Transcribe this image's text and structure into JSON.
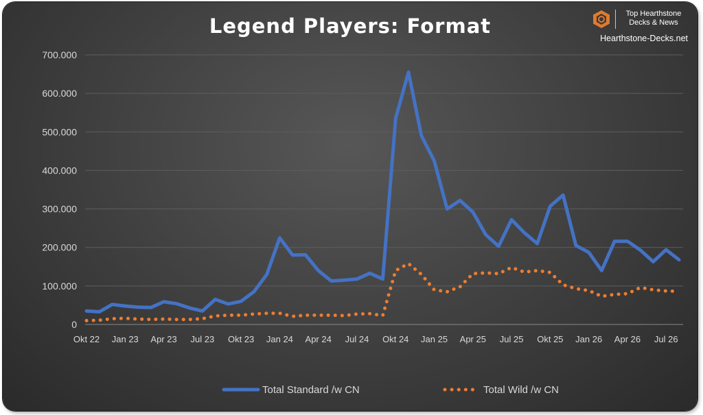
{
  "branding": {
    "tagline_line1": "Top Hearthstone",
    "tagline_line2": "Decks & News",
    "site": "Hearthstone-Decks.net",
    "accent": "#e07a2e"
  },
  "chart_data": {
    "type": "line",
    "title": "Legend Players: Format",
    "xlabel": "",
    "ylabel": "",
    "ylim": [
      0,
      700000
    ],
    "yticks": [
      0,
      100000,
      200000,
      300000,
      400000,
      500000,
      600000,
      700000
    ],
    "ytick_labels": [
      "0",
      "100.000",
      "200.000",
      "300.000",
      "400.000",
      "500.000",
      "600.000",
      "700.000"
    ],
    "grid": "horizontal",
    "legend_position": "bottom",
    "x": [
      "2022-10",
      "2022-11",
      "2022-12",
      "2023-01",
      "2023-02",
      "2023-03",
      "2023-04",
      "2023-05",
      "2023-06",
      "2023-07",
      "2023-08",
      "2023-09",
      "2023-10",
      "2023-11",
      "2023-12",
      "2024-01",
      "2024-02",
      "2024-03",
      "2024-04",
      "2024-05",
      "2024-06",
      "2024-07",
      "2024-08",
      "2024-09",
      "2024-10",
      "2024-11",
      "2024-12",
      "2025-01",
      "2025-02",
      "2025-03",
      "2025-04",
      "2025-05",
      "2025-06",
      "2025-07",
      "2025-08",
      "2025-09",
      "2025-10",
      "2025-11",
      "2025-12",
      "2026-01",
      "2026-02",
      "2026-03",
      "2026-04",
      "2026-05",
      "2026-06",
      "2026-07",
      "2026-08"
    ],
    "xtick_labels": [
      "Okt 22",
      "Jan 23",
      "Apr 23",
      "Jul 23",
      "Okt 23",
      "Jan 24",
      "Apr 24",
      "Jul 24",
      "Okt 24",
      "Jan 25",
      "Apr 25",
      "Jul 25",
      "Okt 25",
      "Jan 26",
      "Apr 26",
      "Jul 26"
    ],
    "series": [
      {
        "name": "Total Standard /w CN",
        "color": "#4472c4",
        "style": "solid",
        "values": [
          35000,
          33000,
          52000,
          48000,
          45000,
          44000,
          59000,
          54000,
          43000,
          35000,
          65000,
          53000,
          60000,
          85000,
          130000,
          225000,
          180000,
          181000,
          140000,
          113000,
          115000,
          118000,
          133000,
          118000,
          535000,
          655000,
          490000,
          425000,
          300000,
          322000,
          292000,
          233000,
          203000,
          272000,
          238000,
          210000,
          307000,
          336000,
          205000,
          187000,
          140000,
          216000,
          216000,
          193000,
          163000,
          194000,
          168000
        ]
      },
      {
        "name": "Total Wild /w CN",
        "color": "#ed7d31",
        "style": "dotted",
        "values": [
          10000,
          11000,
          15000,
          16000,
          14000,
          13000,
          14000,
          13000,
          13000,
          15000,
          22000,
          24000,
          24000,
          27000,
          29000,
          29000,
          21000,
          24000,
          24000,
          24000,
          23000,
          27000,
          28000,
          23000,
          140000,
          158000,
          130000,
          90000,
          85000,
          98000,
          132000,
          134000,
          132000,
          148000,
          136000,
          140000,
          135000,
          103000,
          93000,
          88000,
          73000,
          78000,
          80000,
          96000,
          90000,
          87000,
          86000
        ]
      }
    ]
  }
}
